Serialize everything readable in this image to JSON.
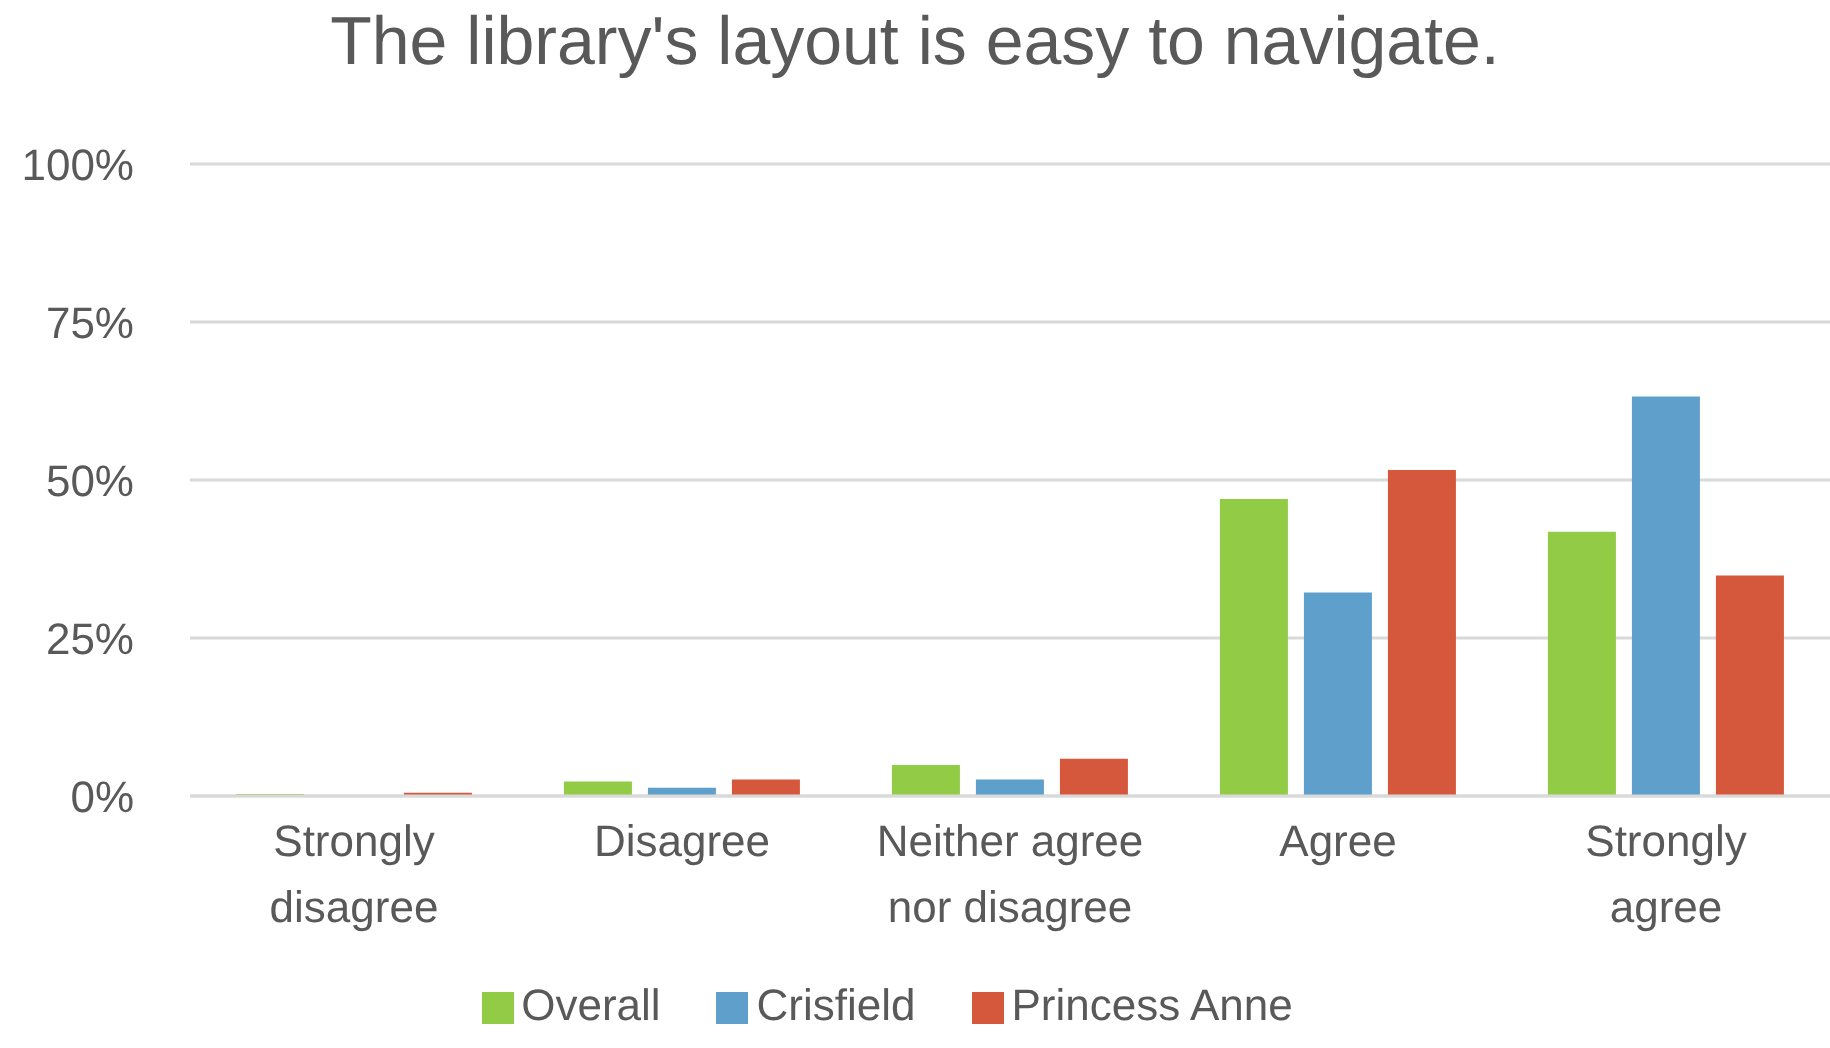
{
  "chart_data": {
    "type": "bar",
    "title": "The library's layout is easy to navigate.",
    "categories": [
      "Strongly disagree",
      "Disagree",
      "Neither agree nor disagree",
      "Agree",
      "Strongly agree"
    ],
    "series": [
      {
        "name": "Overall",
        "color": "#92cc47",
        "values": [
          0.3,
          2.3,
          4.9,
          47,
          41.8
        ]
      },
      {
        "name": "Crisfield",
        "color": "#5f9fcc",
        "values": [
          0,
          1.3,
          2.6,
          32.2,
          63.2
        ]
      },
      {
        "name": "Princess Anne",
        "color": "#d5583d",
        "values": [
          0.5,
          2.6,
          5.9,
          51.6,
          34.9
        ]
      }
    ],
    "ylim": [
      0,
      100
    ],
    "yticks": [
      {
        "value": 0,
        "label": "0%"
      },
      {
        "value": 25,
        "label": "25%"
      },
      {
        "value": 50,
        "label": "50%"
      },
      {
        "value": 75,
        "label": "75%"
      },
      {
        "value": 100,
        "label": "100%"
      }
    ],
    "grid": "y",
    "legend": "bottom"
  }
}
